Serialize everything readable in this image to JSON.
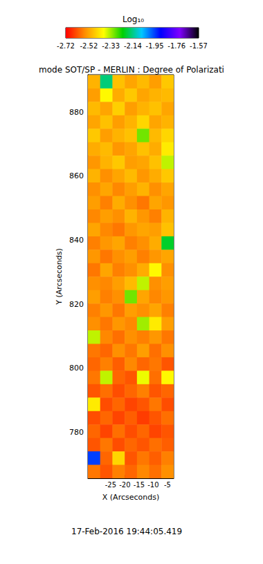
{
  "chart_data": {
    "type": "heatmap",
    "title": "mode SOT/SP - MERLIN : Degree of Polarizati",
    "x_label": "X (Arcseconds)",
    "y_label": "Y (Arcseconds)",
    "annotations": [
      "17-Feb-2016 19:44:05.419"
    ],
    "xlim": [
      -33,
      -2.8
    ],
    "ylim": [
      765.6,
      891.7
    ],
    "xticks": [
      -25,
      -20,
      -15,
      -10,
      -5
    ],
    "yticks": [
      780,
      800,
      820,
      840,
      860,
      880
    ],
    "x": [
      -30.84,
      -26.53,
      -22.21,
      -17.9,
      -13.59,
      -9.27,
      -4.96
    ],
    "y": [
      889.5,
      885.3,
      881.1,
      876.9,
      872.7,
      868.5,
      864.3,
      860.1,
      855.9,
      851.7,
      847.5,
      843.3,
      839.1,
      834.9,
      830.7,
      826.5,
      822.3,
      818.1,
      813.9,
      809.7,
      805.5,
      801.3,
      797.1,
      792.9,
      788.7,
      784.5,
      780.3,
      776.1,
      771.9,
      767.7
    ],
    "cells": [
      [
        -2.5,
        -2.15,
        -2.48,
        -2.52,
        -2.49,
        -2.53,
        -2.47
      ],
      [
        -2.53,
        -2.4,
        -2.51,
        -2.47,
        -2.52,
        -2.5,
        -2.49
      ],
      [
        -2.49,
        -2.52,
        -2.46,
        -2.53,
        -2.5,
        -2.48,
        -2.52
      ],
      [
        -2.52,
        -2.48,
        -2.53,
        -2.5,
        -2.45,
        -2.52,
        -2.5
      ],
      [
        -2.47,
        -2.53,
        -2.5,
        -2.48,
        -2.3,
        -2.49,
        -2.45
      ],
      [
        -2.51,
        -2.49,
        -2.54,
        -2.52,
        -2.48,
        -2.51,
        -2.42
      ],
      [
        -2.54,
        -2.5,
        -2.47,
        -2.53,
        -2.52,
        -2.48,
        -2.35
      ],
      [
        -2.5,
        -2.55,
        -2.52,
        -2.49,
        -2.54,
        -2.51,
        -2.47
      ],
      [
        -2.55,
        -2.52,
        -2.56,
        -2.53,
        -2.5,
        -2.55,
        -2.52
      ],
      [
        -2.53,
        -2.57,
        -2.51,
        -2.55,
        -2.58,
        -2.52,
        -2.54
      ],
      [
        -2.56,
        -2.53,
        -2.55,
        -2.5,
        -2.54,
        -2.57,
        -2.5
      ],
      [
        -2.52,
        -2.56,
        -2.58,
        -2.54,
        -2.52,
        -2.53,
        -2.48
      ],
      [
        -2.57,
        -2.54,
        -2.52,
        -2.57,
        -2.55,
        -2.51,
        -2.2
      ],
      [
        -2.54,
        -2.58,
        -2.55,
        -2.53,
        -2.57,
        -2.54,
        -2.52
      ],
      [
        -2.58,
        -2.52,
        -2.57,
        -2.55,
        -2.51,
        -2.4,
        -2.55
      ],
      [
        -2.55,
        -2.56,
        -2.53,
        -2.49,
        -2.35,
        -2.55,
        -2.53
      ],
      [
        -2.53,
        -2.57,
        -2.55,
        -2.3,
        -2.52,
        -2.56,
        -2.54
      ],
      [
        -2.57,
        -2.54,
        -2.58,
        -2.53,
        -2.55,
        -2.52,
        -2.57
      ],
      [
        -2.55,
        -2.58,
        -2.54,
        -2.56,
        -2.33,
        -2.42,
        -2.53
      ],
      [
        -2.35,
        -2.56,
        -2.59,
        -2.55,
        -2.57,
        -2.54,
        -2.58
      ],
      [
        -2.58,
        -2.6,
        -2.55,
        -2.58,
        -2.53,
        -2.59,
        -2.55
      ],
      [
        -2.6,
        -2.57,
        -2.61,
        -2.56,
        -2.6,
        -2.58,
        -2.62
      ],
      [
        -2.58,
        -2.35,
        -2.6,
        -2.62,
        -2.38,
        -2.59,
        -2.4
      ],
      [
        -2.62,
        -2.59,
        -2.63,
        -2.6,
        -2.57,
        -2.62,
        -2.6
      ],
      [
        -2.42,
        -2.63,
        -2.6,
        -2.64,
        -2.62,
        -2.58,
        -2.63
      ],
      [
        -2.63,
        -2.6,
        -2.64,
        -2.61,
        -2.65,
        -2.62,
        -2.59
      ],
      [
        -2.6,
        -2.64,
        -2.59,
        -2.63,
        -2.6,
        -2.64,
        -2.62
      ],
      [
        -2.62,
        -2.58,
        -2.63,
        -2.6,
        -2.62,
        -2.59,
        -2.61
      ],
      [
        -1.95,
        -2.6,
        -2.45,
        -2.62,
        -2.58,
        -2.61,
        -2.57
      ],
      [
        -2.58,
        -2.62,
        -2.57,
        -2.6,
        -2.56,
        -2.59,
        -2.55
      ]
    ],
    "colorbar": {
      "label": "Log₁₀",
      "range": [
        -2.72,
        -1.57
      ],
      "ticks": [
        -2.72,
        -2.52,
        -2.33,
        -2.14,
        -1.95,
        -1.76,
        -1.57
      ],
      "colors": [
        "#ff0000",
        "#ff8c00",
        "#ffff00",
        "#00d000",
        "#00c8ff",
        "#0000ff",
        "#7f00ff",
        "#000000"
      ]
    }
  }
}
